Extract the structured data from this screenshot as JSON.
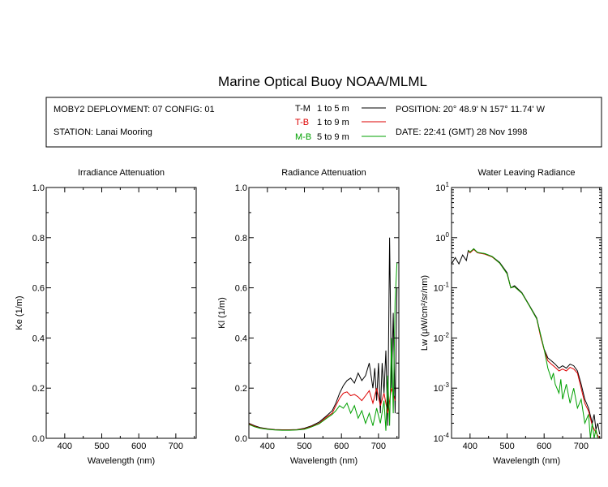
{
  "title": "Marine Optical Buoy NOAA/MLML",
  "info": {
    "deployment": "MOBY2 DEPLOYMENT: 07 CONFIG: 01",
    "station": "STATION: Lanai Mooring",
    "position": "POSITION: 20° 48.9' N   157° 11.74' W",
    "date": "DATE: 22:41 (GMT) 28 Nov 1998"
  },
  "legend": [
    {
      "code": "T-M",
      "range": "1 to 5  m",
      "color": "#000000"
    },
    {
      "code": "T-B",
      "range": "1 to 9  m",
      "color": "#dd0000"
    },
    {
      "code": "M-B",
      "range": "5 to 9  m",
      "color": "#00a000"
    }
  ],
  "chart_data": [
    {
      "type": "line",
      "title": "Irradiance Attenuation",
      "xlabel": "Wavelength (nm)",
      "ylabel": "Ke  (1/m)",
      "xlim": [
        350,
        755
      ],
      "ylim": [
        0,
        1
      ],
      "xticks": [
        400,
        500,
        600,
        700
      ],
      "yticks": [
        "0.0",
        "0.2",
        "0.4",
        "0.6",
        "0.8",
        "1.0"
      ],
      "series": []
    },
    {
      "type": "line",
      "title": "Radiance Attenuation",
      "xlabel": "Wavelength (nm)",
      "ylabel": "Kl  (1/m)",
      "xlim": [
        350,
        755
      ],
      "ylim": [
        0,
        1
      ],
      "xticks": [
        400,
        500,
        600,
        700
      ],
      "yticks": [
        "0.0",
        "0.2",
        "0.4",
        "0.6",
        "0.8",
        "1.0"
      ],
      "series": [
        {
          "name": "T-M",
          "color": "#000000",
          "x": [
            350,
            365,
            380,
            400,
            420,
            440,
            460,
            480,
            500,
            520,
            540,
            560,
            575,
            585,
            595,
            605,
            615,
            625,
            635,
            645,
            655,
            665,
            675,
            685,
            690,
            695,
            700,
            705,
            710,
            715,
            720,
            725,
            730,
            735,
            740,
            745,
            750
          ],
          "y": [
            0.06,
            0.05,
            0.043,
            0.038,
            0.035,
            0.034,
            0.034,
            0.035,
            0.04,
            0.05,
            0.065,
            0.09,
            0.11,
            0.14,
            0.18,
            0.21,
            0.23,
            0.24,
            0.22,
            0.26,
            0.23,
            0.25,
            0.3,
            0.2,
            0.28,
            0.15,
            0.3,
            0.1,
            0.3,
            0.18,
            0.35,
            0.05,
            0.8,
            0.2,
            0.5,
            0.1,
            0.6
          ]
        },
        {
          "name": "T-B",
          "color": "#dd0000",
          "x": [
            350,
            365,
            380,
            400,
            420,
            440,
            460,
            480,
            500,
            520,
            540,
            560,
            575,
            585,
            595,
            605,
            615,
            625,
            635,
            645,
            655,
            665,
            675,
            685,
            695,
            705,
            715,
            725,
            735,
            745
          ],
          "y": [
            0.058,
            0.048,
            0.041,
            0.037,
            0.034,
            0.033,
            0.033,
            0.034,
            0.038,
            0.048,
            0.06,
            0.085,
            0.1,
            0.13,
            0.16,
            0.18,
            0.185,
            0.17,
            0.175,
            0.165,
            0.15,
            0.17,
            0.19,
            0.14,
            0.2,
            0.13,
            0.18,
            0.1,
            0.2,
            0.15
          ]
        },
        {
          "name": "M-B",
          "color": "#00a000",
          "x": [
            350,
            365,
            380,
            400,
            420,
            440,
            460,
            480,
            500,
            520,
            540,
            560,
            575,
            585,
            595,
            605,
            615,
            625,
            635,
            645,
            655,
            665,
            675,
            685,
            695,
            705,
            715,
            720,
            725,
            730,
            735,
            740,
            745,
            750
          ],
          "y": [
            0.055,
            0.046,
            0.04,
            0.036,
            0.033,
            0.032,
            0.032,
            0.033,
            0.036,
            0.046,
            0.058,
            0.08,
            0.095,
            0.11,
            0.13,
            0.12,
            0.14,
            0.1,
            0.13,
            0.08,
            0.11,
            0.06,
            0.1,
            0.05,
            0.12,
            0.06,
            0.15,
            0.03,
            0.25,
            0.05,
            0.4,
            0.1,
            0.55,
            0.7
          ]
        }
      ]
    },
    {
      "type": "line",
      "title": "Water Leaving Radiance",
      "xlabel": "Wavelength (nm)",
      "ylabel": "Lw  (µW/cm²/sr/nm)",
      "xlim": [
        350,
        755
      ],
      "ylim": [
        0.0001,
        10
      ],
      "yscale": "log",
      "xticks": [
        400,
        500,
        600,
        700
      ],
      "yticks": [
        "10-4",
        "10-3",
        "10-2",
        "10-1",
        "100",
        "101"
      ],
      "series": [
        {
          "name": "T-M",
          "color": "#000000",
          "x": [
            350,
            360,
            370,
            380,
            390,
            395,
            400,
            410,
            420,
            440,
            460,
            480,
            500,
            510,
            520,
            540,
            560,
            580,
            590,
            600,
            610,
            620,
            630,
            640,
            650,
            660,
            670,
            680,
            690,
            700,
            710,
            720,
            730,
            735,
            740,
            745,
            750
          ],
          "y": [
            0.3,
            0.4,
            0.3,
            0.45,
            0.35,
            0.55,
            0.5,
            0.6,
            0.5,
            0.48,
            0.42,
            0.32,
            0.2,
            0.1,
            0.11,
            0.08,
            0.045,
            0.025,
            0.012,
            0.006,
            0.004,
            0.0035,
            0.003,
            0.0025,
            0.0028,
            0.0025,
            0.003,
            0.0028,
            0.0022,
            0.0012,
            0.0006,
            0.0004,
            0.0002,
            0.0003,
            0.00015,
            0.0002,
            0.00012
          ]
        },
        {
          "name": "T-B",
          "color": "#dd0000",
          "x": [
            395,
            400,
            410,
            420,
            440,
            460,
            480,
            500,
            510,
            520,
            540,
            560,
            580,
            590,
            600,
            610,
            620,
            630,
            640,
            650,
            660,
            670,
            680,
            690,
            700,
            710,
            720,
            730,
            740,
            750
          ],
          "y": [
            0.54,
            0.5,
            0.58,
            0.5,
            0.47,
            0.41,
            0.31,
            0.19,
            0.1,
            0.105,
            0.078,
            0.044,
            0.024,
            0.011,
            0.0058,
            0.0035,
            0.003,
            0.0026,
            0.0022,
            0.0024,
            0.0022,
            0.0026,
            0.0024,
            0.002,
            0.001,
            0.0005,
            0.00035,
            0.00018,
            0.00013,
            0.0001
          ]
        },
        {
          "name": "M-B",
          "color": "#00a000",
          "x": [
            395,
            400,
            410,
            420,
            440,
            460,
            480,
            500,
            510,
            520,
            540,
            560,
            580,
            590,
            600,
            610,
            620,
            625,
            630,
            640,
            645,
            650,
            660,
            670,
            680,
            690,
            700,
            710,
            720,
            725,
            730,
            735,
            740,
            745,
            750
          ],
          "y": [
            0.56,
            0.52,
            0.6,
            0.51,
            0.48,
            0.42,
            0.31,
            0.19,
            0.1,
            0.105,
            0.078,
            0.044,
            0.024,
            0.012,
            0.006,
            0.0025,
            0.0015,
            0.002,
            0.0012,
            0.0008,
            0.0015,
            0.0006,
            0.0012,
            0.0005,
            0.001,
            0.0004,
            0.0006,
            0.0002,
            0.0003,
            0.0001,
            0.0002,
            0.0001,
            0.00015,
            0.0001,
            0.0001
          ]
        }
      ]
    }
  ]
}
